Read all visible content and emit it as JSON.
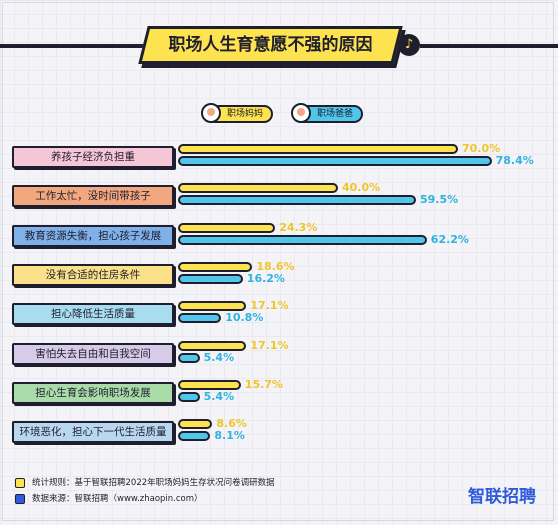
{
  "title": "职场人生育意愿不强的原因",
  "badge_glyph": "♪",
  "legend": [
    {
      "label": "职场妈妈",
      "color": "#fde34f"
    },
    {
      "label": "职场爸爸",
      "color": "#4fc6ea"
    }
  ],
  "category_colors": [
    "#f5c6d6",
    "#f3a77f",
    "#7fb0e8",
    "#fbe08a",
    "#a8dcef",
    "#d6cbe8",
    "#a9dca9",
    "#b9d8f0"
  ],
  "chart_data": {
    "type": "bar",
    "orientation": "horizontal",
    "categories": [
      "养孩子经济负担重",
      "工作太忙，没时间带孩子",
      "教育资源失衡，担心孩子发展",
      "没有合适的住房条件",
      "担心降低生活质量",
      "害怕失去自由和自我空间",
      "担心生育会影响职场发展",
      "环境恶化，担心下一代生活质量"
    ],
    "series": [
      {
        "name": "职场妈妈",
        "color": "#fde34f",
        "values": [
          70.0,
          40.0,
          24.3,
          18.6,
          17.1,
          17.1,
          15.7,
          8.6
        ],
        "labels": [
          "70.0%",
          "40.0%",
          "24.3%",
          "18.6%",
          "17.1%",
          "17.1%",
          "15.7%",
          "8.6%"
        ]
      },
      {
        "name": "职场爸爸",
        "color": "#4fc6ea",
        "values": [
          78.4,
          59.5,
          62.2,
          16.2,
          10.8,
          5.4,
          5.4,
          8.1
        ],
        "labels": [
          "78.4%",
          "59.5%",
          "62.2%",
          "16.2%",
          "10.8%",
          "5.4%",
          "5.4%",
          "8.1%"
        ]
      }
    ],
    "unit": "%",
    "xlim": [
      0,
      80
    ]
  },
  "footer": {
    "rule": "统计规则：基于智联招聘2022年职场妈妈生存状况问卷调研数据",
    "source": "数据来源：智联招聘（www.zhaopin.com）",
    "rule_color": "#fde34f",
    "source_color": "#2f5bd9"
  },
  "brand": "智联招聘"
}
